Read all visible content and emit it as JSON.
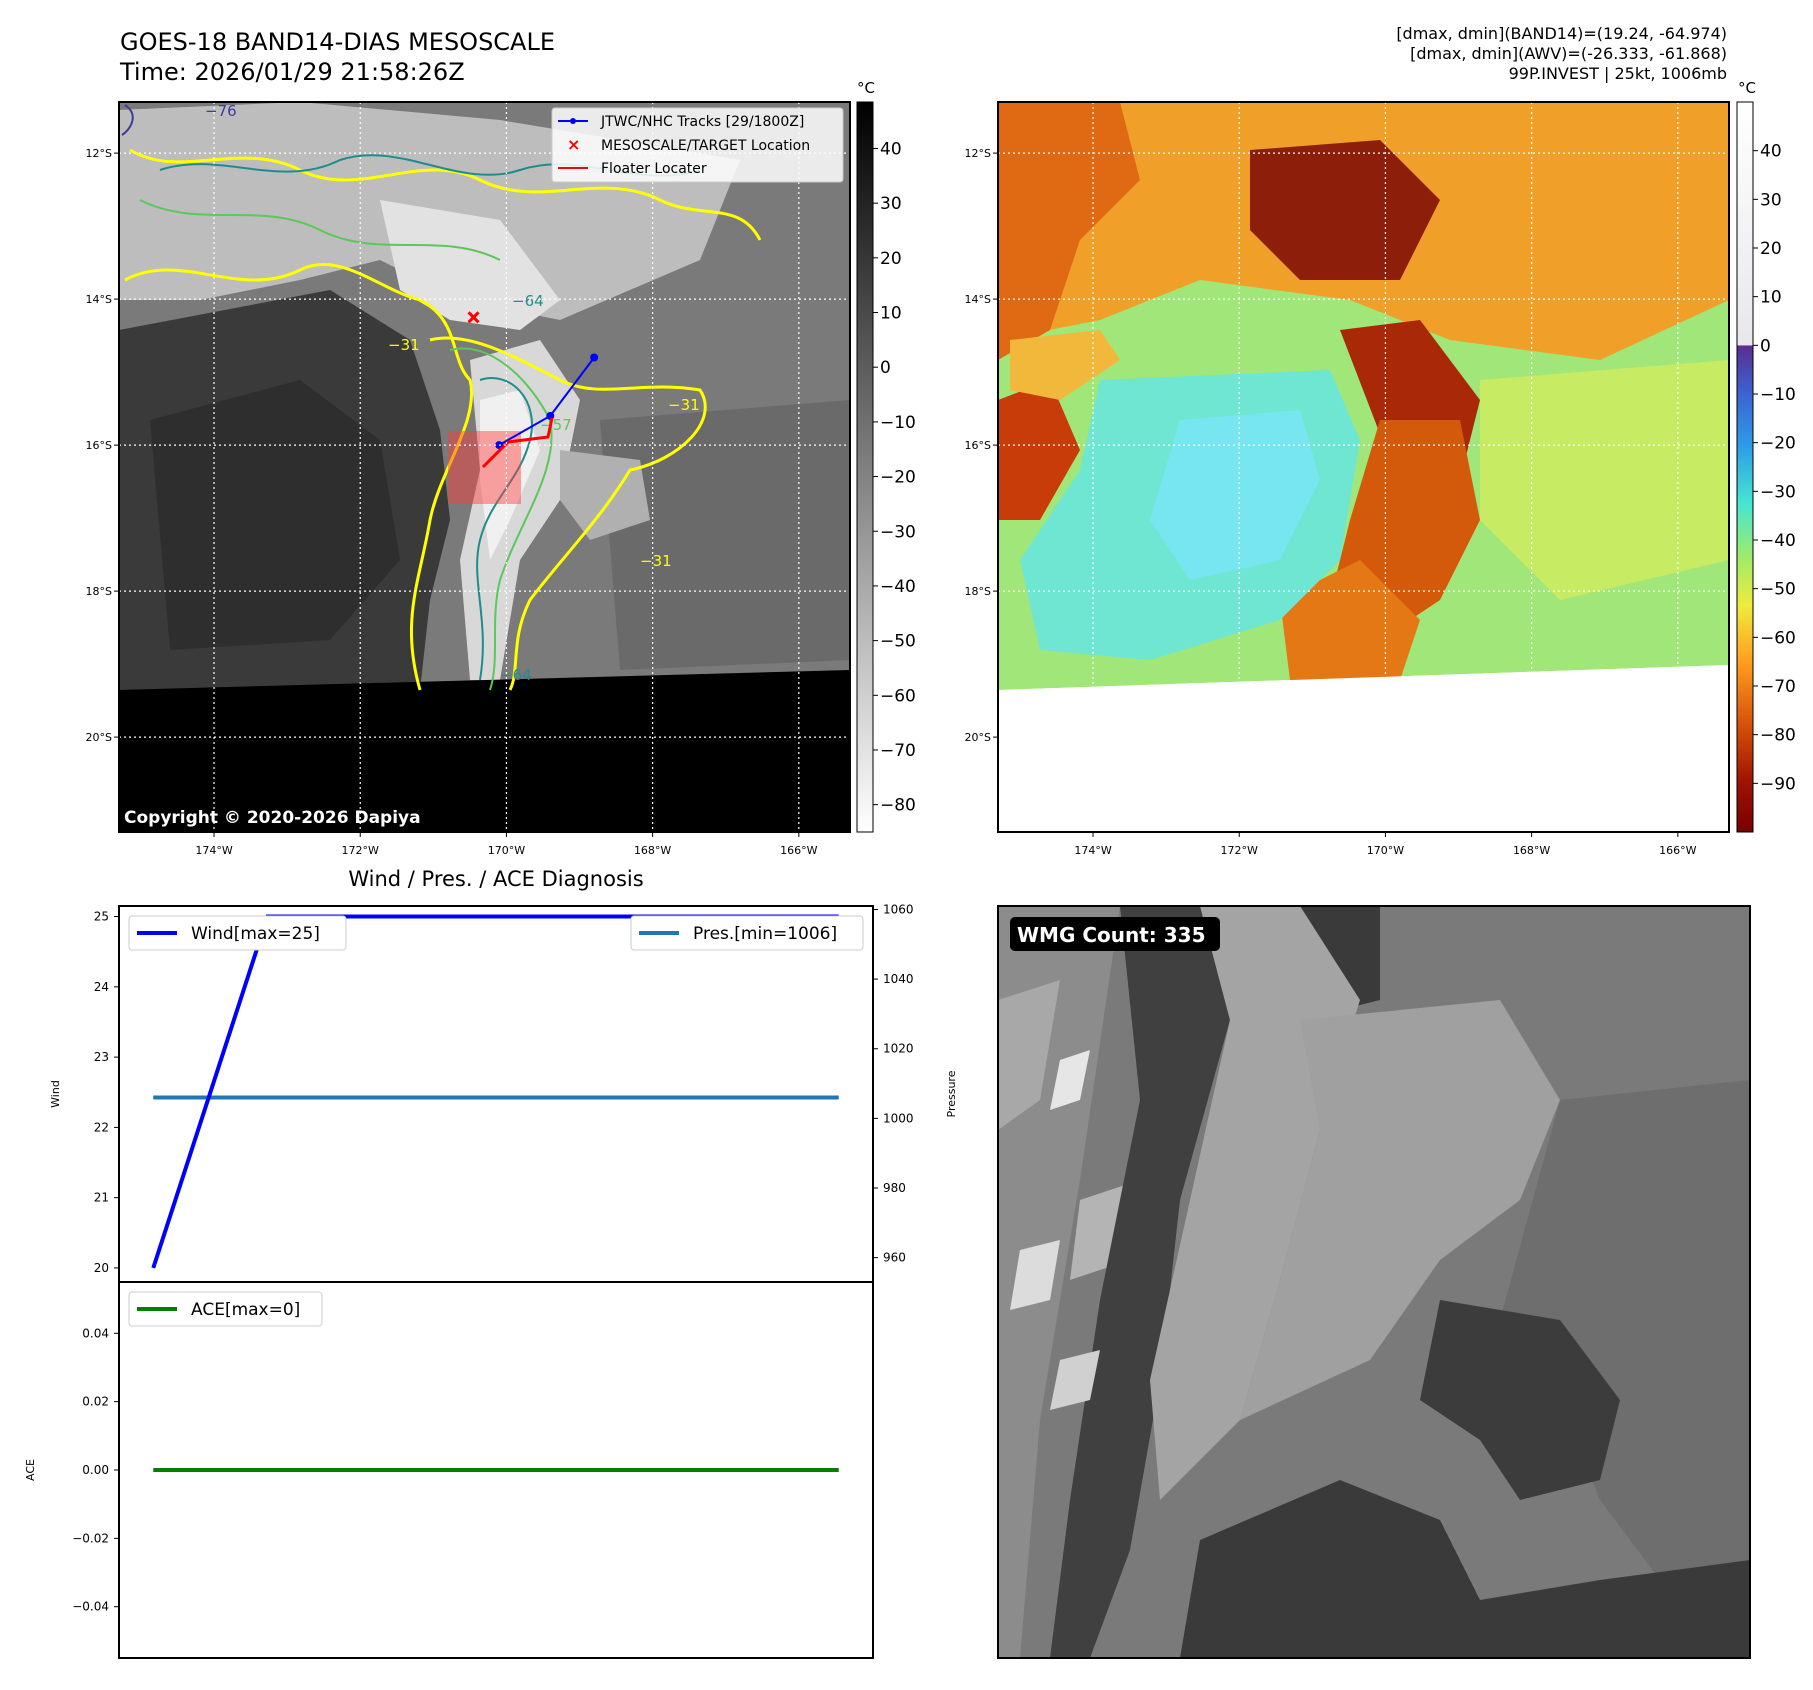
{
  "header": {
    "title_line1": "GOES-18 BAND14-DIAS MESOSCALE",
    "title_line2": "Time: 2026/01/29 21:58:26Z",
    "stats_line1": "[dmax, dmin](BAND14)=(19.24, -64.974)",
    "stats_line2": "[dmax, dmin](AWV)=(-26.333, -61.868)",
    "stats_line3": "99P.INVEST | 25kt, 1006mb"
  },
  "map_axes": {
    "lon_ticks": [
      "174°W",
      "172°W",
      "170°W",
      "168°W",
      "166°W"
    ],
    "lat_ticks": [
      "12°S",
      "14°S",
      "16°S",
      "18°S",
      "20°S"
    ]
  },
  "band14_panel": {
    "colorbar_unit": "°C",
    "colorbar_ticks": [
      "40",
      "30",
      "20",
      "10",
      "0",
      "−10",
      "−20",
      "−30",
      "−40",
      "−50",
      "−60",
      "−70",
      "−80"
    ],
    "contour_labels": [
      "−76",
      "−64",
      "−31",
      "−31",
      "−57",
      "−64",
      "−31"
    ],
    "legend": [
      {
        "label": "JTWC/NHC Tracks [29/1800Z]",
        "color": "#0000ff",
        "marker": "dot-line"
      },
      {
        "label": "MESOSCALE/TARGET Location",
        "color": "#ff0000",
        "marker": "x"
      },
      {
        "label": "Floater Locater",
        "color": "#ff0000",
        "marker": "line"
      }
    ],
    "copyright": "Copyright © 2020-2026 Dapiya"
  },
  "awv_panel": {
    "colorbar_unit": "°C",
    "colorbar_ticks": [
      "40",
      "30",
      "20",
      "10",
      "0",
      "−10",
      "−20",
      "−30",
      "−40",
      "−50",
      "−60",
      "−70",
      "−80",
      "−90"
    ]
  },
  "diag_panel": {
    "title": "Wind / Pres. / ACE Diagnosis"
  },
  "wmg_panel": {
    "count_label": "WMG Count: 335"
  },
  "colors": {
    "wind": "#0000ff",
    "pressure": "#1f77b4",
    "ace": "#008000",
    "track": "#0000ff",
    "floater": "#ff0000",
    "contour_yellow": "#ffff00",
    "contour_green": "#5ac85a",
    "contour_teal": "#1e8c8c"
  },
  "chart_data": [
    {
      "type": "line",
      "name": "wind-pressure",
      "x": [
        0,
        1,
        2,
        3,
        4,
        5,
        6
      ],
      "series": [
        {
          "name": "Wind[max=25]",
          "axis": "left",
          "values": [
            20,
            25,
            25,
            25,
            25,
            25,
            25
          ]
        },
        {
          "name": "Pres.[min=1006]",
          "axis": "right",
          "values": [
            1006,
            1006,
            1006,
            1006,
            1006,
            1006,
            1006
          ]
        }
      ],
      "ylabel": "Wind",
      "y2label": "Pressure",
      "ylim": [
        19.8,
        25.15
      ],
      "y2lim": [
        953,
        1061
      ],
      "yticks": [
        20,
        21,
        22,
        23,
        24,
        25
      ],
      "y2ticks": [
        960,
        980,
        1000,
        1020,
        1040,
        1060
      ],
      "legend_positions": [
        "upper-left",
        "upper-right"
      ]
    },
    {
      "type": "line",
      "name": "ace",
      "x": [
        0,
        1,
        2,
        3,
        4,
        5,
        6
      ],
      "series": [
        {
          "name": "ACE[max=0]",
          "values": [
            0,
            0,
            0,
            0,
            0,
            0,
            0
          ]
        }
      ],
      "ylabel": "ACE",
      "ylim": [
        -0.055,
        0.055
      ],
      "yticks": [
        -0.04,
        -0.02,
        0.0,
        0.02,
        0.04
      ],
      "yticklabels": [
        "−0.04",
        "−0.02",
        "0.00",
        "0.02",
        "0.04"
      ],
      "legend_positions": [
        "upper-left"
      ]
    },
    {
      "type": "line",
      "name": "jtwc-track",
      "series": [
        {
          "name": "JTWC/NHC Tracks [29/1800Z]",
          "lon": [
            -168.8,
            -169.4,
            -170.1
          ],
          "lat": [
            -14.8,
            -15.6,
            -16.0
          ]
        }
      ],
      "target_location": {
        "lon": -170.45,
        "lat": -14.25
      }
    }
  ]
}
